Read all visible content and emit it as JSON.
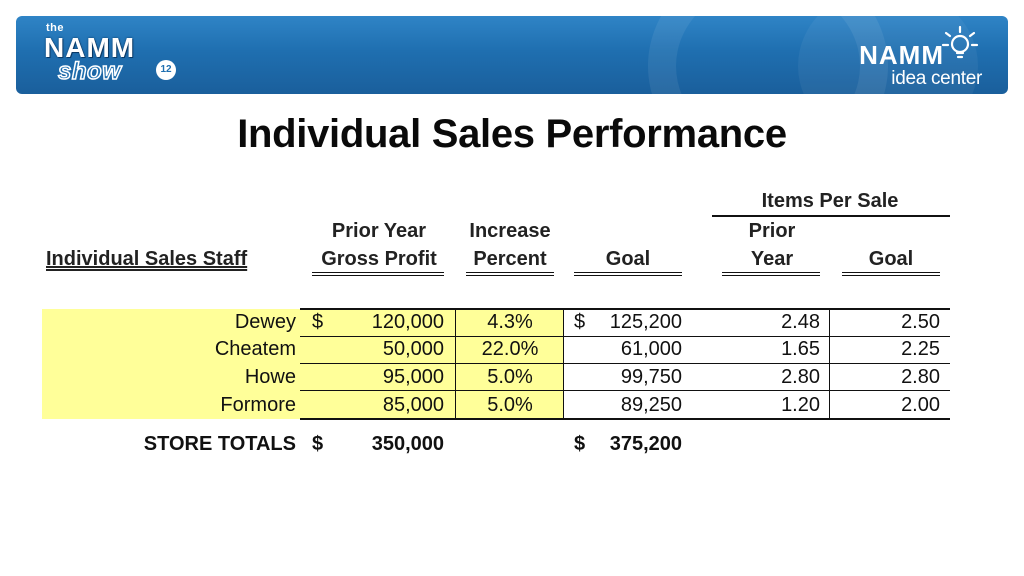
{
  "banner": {
    "left_logo": {
      "the": "the",
      "namm": "NAMM",
      "show": "show",
      "badge": "12"
    },
    "right_logo": {
      "namm": "NAMM",
      "idea": "idea center"
    }
  },
  "title": "Individual Sales Performance",
  "table": {
    "group_header": "Items Per Sale",
    "headers": {
      "staff": "Individual Sales Staff",
      "prior_year_line1": "Prior Year",
      "prior_year_line2": "Gross Profit",
      "increase_line1": "Increase",
      "increase_line2": "Percent",
      "goal": "Goal",
      "ips_prior_line1": "Prior",
      "ips_prior_line2": "Year",
      "ips_goal": "Goal"
    },
    "currency_symbol": "$",
    "rows": [
      {
        "name": "Dewey",
        "gross_profit": "120,000",
        "increase": "4.3%",
        "goal": "125,200",
        "ips_prior": "2.48",
        "ips_goal": "2.50"
      },
      {
        "name": "Cheatem",
        "gross_profit": "50,000",
        "increase": "22.0%",
        "goal": "61,000",
        "ips_prior": "1.65",
        "ips_goal": "2.25"
      },
      {
        "name": "Howe",
        "gross_profit": "95,000",
        "increase": "5.0%",
        "goal": "99,750",
        "ips_prior": "2.80",
        "ips_goal": "2.80"
      },
      {
        "name": "Formore",
        "gross_profit": "85,000",
        "increase": "5.0%",
        "goal": "89,250",
        "ips_prior": "1.20",
        "ips_goal": "2.00"
      }
    ],
    "totals": {
      "label": "STORE TOTALS",
      "gross_profit": "350,000",
      "goal": "375,200"
    }
  }
}
